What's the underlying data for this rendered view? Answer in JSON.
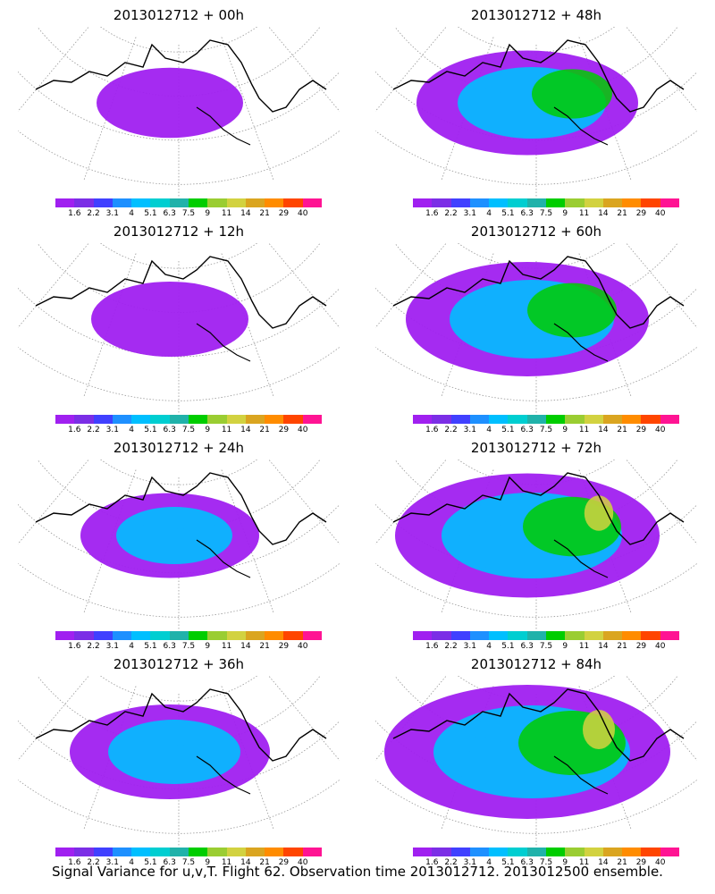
{
  "panels": [
    {
      "title": "2013012712 + 00h",
      "spread": 0.35
    },
    {
      "title": "2013012712 + 48h",
      "spread": 0.7
    },
    {
      "title": "2013012712 + 12h",
      "spread": 0.4
    },
    {
      "title": "2013012712 + 60h",
      "spread": 0.8
    },
    {
      "title": "2013012712 + 24h",
      "spread": 0.5
    },
    {
      "title": "2013012712 + 72h",
      "spread": 0.9
    },
    {
      "title": "2013012712 + 36h",
      "spread": 0.6
    },
    {
      "title": "2013012712 + 84h",
      "spread": 1.0
    }
  ],
  "legend": {
    "ticks": [
      "1.6",
      "2.2",
      "3.1",
      "4",
      "5.1",
      "6.3",
      "7.5",
      "9",
      "11",
      "14",
      "21",
      "29",
      "40"
    ],
    "colors": [
      "#a020f0",
      "#7b2ee6",
      "#4040ff",
      "#1e90ff",
      "#00bfff",
      "#00ced1",
      "#20b2aa",
      "#00cd00",
      "#9acd32",
      "#d2d240",
      "#daa520",
      "#ff8c00",
      "#ff4500",
      "#ff1493"
    ]
  },
  "caption": "Signal Variance for u,v,T. Flight 62. Observation time 2013012712. 2013012500 ensemble."
}
